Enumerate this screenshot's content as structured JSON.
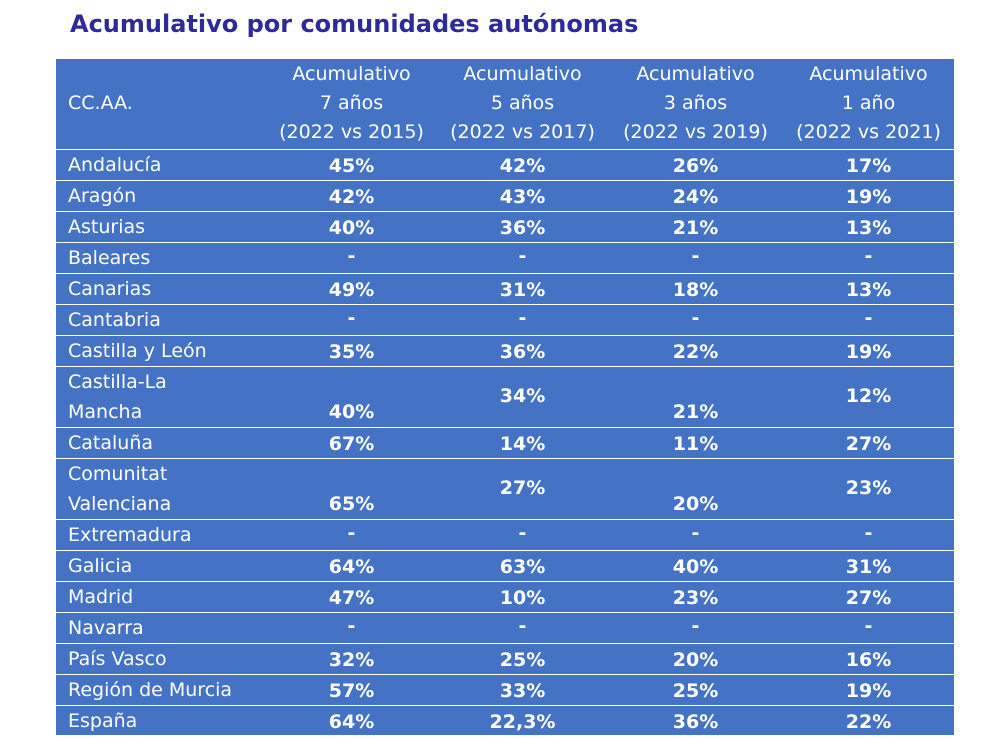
{
  "title": "Acumulativo por comunidades autónomas",
  "table": {
    "headers": [
      {
        "lines": [
          "CC.AA."
        ]
      },
      {
        "lines": [
          "Acumulativo",
          "7 años",
          "(2022 vs 2015)"
        ]
      },
      {
        "lines": [
          "Acumulativo",
          "5 años",
          "(2022 vs 2017)"
        ]
      },
      {
        "lines": [
          "Acumulativo",
          "3 años",
          "(2022 vs 2019)"
        ]
      },
      {
        "lines": [
          "Acumulativo",
          "1 año",
          "(2022 vs 2021)"
        ]
      }
    ],
    "rows": [
      {
        "name": [
          "Andalucía"
        ],
        "values": [
          "45%",
          "42%",
          "26%",
          "17%"
        ]
      },
      {
        "name": [
          "Aragón"
        ],
        "values": [
          "42%",
          "43%",
          "24%",
          "19%"
        ]
      },
      {
        "name": [
          "Asturias"
        ],
        "values": [
          "40%",
          "36%",
          "21%",
          "13%"
        ]
      },
      {
        "name": [
          "Baleares"
        ],
        "values": [
          "-",
          "-",
          "-",
          "-"
        ]
      },
      {
        "name": [
          "Canarias"
        ],
        "values": [
          "49%",
          "31%",
          "18%",
          "13%"
        ]
      },
      {
        "name": [
          "Cantabria"
        ],
        "values": [
          "-",
          "-",
          "-",
          "-"
        ]
      },
      {
        "name": [
          "Castilla y León"
        ],
        "values": [
          "35%",
          "36%",
          "22%",
          "19%"
        ]
      },
      {
        "name": [
          "Castilla-La",
          "Mancha"
        ],
        "values": [
          "40%",
          "34%",
          "21%",
          "12%"
        ]
      },
      {
        "name": [
          "Cataluña"
        ],
        "values": [
          "67%",
          "14%",
          "11%",
          "27%"
        ]
      },
      {
        "name": [
          "Comunitat",
          "Valenciana"
        ],
        "values": [
          "65%",
          "27%",
          "20%",
          "23%"
        ]
      },
      {
        "name": [
          "Extremadura"
        ],
        "values": [
          "-",
          "-",
          "-",
          "-"
        ]
      },
      {
        "name": [
          "Galicia"
        ],
        "values": [
          "64%",
          "63%",
          "40%",
          "31%"
        ]
      },
      {
        "name": [
          "Madrid"
        ],
        "values": [
          "47%",
          "10%",
          "23%",
          "27%"
        ]
      },
      {
        "name": [
          "Navarra"
        ],
        "values": [
          "-",
          "-",
          "-",
          "-"
        ]
      },
      {
        "name": [
          "País Vasco"
        ],
        "values": [
          "32%",
          "25%",
          "20%",
          "16%"
        ]
      },
      {
        "name": [
          "Región de Murcia"
        ],
        "values": [
          "57%",
          "33%",
          "25%",
          "19%"
        ]
      },
      {
        "name": [
          "España"
        ],
        "values": [
          "64%",
          "22,3%",
          "36%",
          "22%"
        ]
      }
    ]
  }
}
